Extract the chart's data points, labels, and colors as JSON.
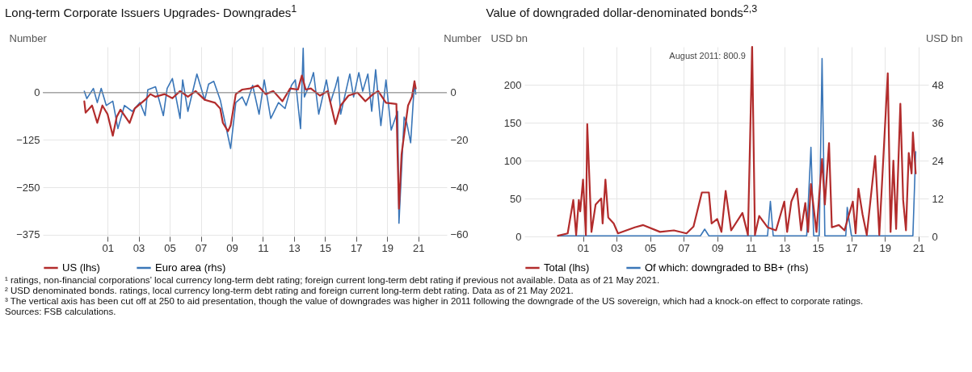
{
  "chart_data": [
    {
      "type": "line",
      "title": "Long-term Corporate Issuers Upgrades- Downgrades$^{1}$",
      "ylabel": "Number",
      "y2label": "Number",
      "xlim": [
        "1997-05",
        "2023-05"
      ],
      "xticks": [
        {
          "value": "2001-07",
          "label": "01"
        },
        {
          "value": "2003-07",
          "label": "03"
        },
        {
          "value": "2005-07",
          "label": "05"
        },
        {
          "value": "2007-07",
          "label": "07"
        },
        {
          "value": "2009-07",
          "label": "09"
        },
        {
          "value": "2011-07",
          "label": "11"
        },
        {
          "value": "2013-07",
          "label": "13"
        },
        {
          "value": "2015-07",
          "label": "15"
        },
        {
          "value": "2017-07",
          "label": "17"
        },
        {
          "value": "2019-07",
          "label": "19"
        },
        {
          "value": "2021-07",
          "label": "21"
        }
      ],
      "ylim": [
        -380,
        121
      ],
      "yticks": [
        -375,
        -250,
        -125,
        0
      ],
      "y2lim": [
        -60.8,
        19.4
      ],
      "y2ticks": [
        -60,
        -40,
        -20,
        0
      ],
      "grid": true,
      "legend": "bottom",
      "line_style": "solid",
      "marker": "none",
      "ref_lines": [
        {
          "axis": "y",
          "value": 0
        }
      ],
      "series": [
        {
          "name": "US (lhs)",
          "color": "#b22c2c",
          "x": [
            "2000-01",
            "2000-02",
            "2000-07",
            "2000-11",
            "2001-03",
            "2001-07",
            "2001-11",
            "2002-02",
            "2002-05",
            "2002-12",
            "2003-04",
            "2003-12",
            "2004-04",
            "2004-08",
            "2005-03",
            "2005-09",
            "2006-03",
            "2006-09",
            "2007-03",
            "2007-10",
            "2008-06",
            "2008-10",
            "2008-12",
            "2009-04",
            "2009-06",
            "2009-10",
            "2010-03",
            "2010-09",
            "2011-03",
            "2011-09",
            "2012-03",
            "2012-10",
            "2013-04",
            "2013-10",
            "2014-01",
            "2014-04",
            "2014-08",
            "2015-03",
            "2015-09",
            "2016-03",
            "2016-07",
            "2017-01",
            "2017-08",
            "2018-02",
            "2018-08",
            "2018-12",
            "2019-06",
            "2020-02",
            "2020-03",
            "2020-04",
            "2020-06",
            "2020-11",
            "2021-02",
            "2021-04",
            "2021-05"
          ],
          "values": [
            -23,
            -53,
            -34,
            -80,
            -34,
            -57,
            -114,
            -64,
            -45,
            -80,
            -42,
            -19,
            -4,
            -11,
            -4,
            -15,
            4,
            -11,
            4,
            -19,
            -27,
            -42,
            -80,
            -102,
            -87,
            -4,
            8,
            11,
            19,
            -4,
            4,
            -23,
            11,
            8,
            45,
            8,
            11,
            -8,
            4,
            -83,
            -34,
            -8,
            0,
            -23,
            -4,
            4,
            -27,
            -30,
            -171,
            -307,
            -163,
            -34,
            -11,
            30,
            11
          ]
        },
        {
          "name": "Euro area (rhs)",
          "color": "#3a76b8",
          "axis": "y2",
          "x": [
            "2000-01",
            "2000-03",
            "2000-08",
            "2000-11",
            "2001-02",
            "2001-06",
            "2001-11",
            "2002-03",
            "2002-08",
            "2003-02",
            "2003-08",
            "2003-12",
            "2004-02",
            "2004-08",
            "2005-02",
            "2005-05",
            "2005-09",
            "2006-03",
            "2006-05",
            "2006-09",
            "2007-04",
            "2007-10",
            "2008-01",
            "2008-05",
            "2008-10",
            "2009-06",
            "2009-10",
            "2010-03",
            "2010-06",
            "2010-11",
            "2011-04",
            "2011-08",
            "2012-01",
            "2012-07",
            "2012-12",
            "2013-05",
            "2013-08",
            "2013-12",
            "2014-02",
            "2014-03",
            "2014-08",
            "2014-10",
            "2015-02",
            "2015-08",
            "2015-11",
            "2016-03",
            "2016-05",
            "2016-07",
            "2017-02",
            "2017-05",
            "2017-09",
            "2017-12",
            "2018-04",
            "2018-07",
            "2018-10",
            "2019-02",
            "2019-06",
            "2019-10",
            "2020-03",
            "2020-04",
            "2020-08",
            "2020-10",
            "2021-01",
            "2021-03",
            "2021-04",
            "2021-05"
          ],
          "values": [
            0.6,
            -2.5,
            1.8,
            -4.2,
            1.8,
            -5.4,
            -3.6,
            -15.2,
            -5.4,
            -7.9,
            -4.2,
            -9.7,
            1.2,
            2.5,
            -9.7,
            1.8,
            6,
            -10.9,
            5.4,
            -7.9,
            7.9,
            -3.1,
            3.6,
            4.8,
            -3.1,
            -23.6,
            -4.2,
            -1.8,
            -5.4,
            3.1,
            -9.1,
            5.4,
            -10.9,
            -4.2,
            -6.7,
            3.1,
            5.4,
            -15.2,
            18.8,
            -1.8,
            4.8,
            8.5,
            -9.1,
            5.4,
            -4.2,
            2.5,
            6.7,
            -9.1,
            7.9,
            -1.8,
            8.5,
            0.6,
            7.9,
            -7.9,
            9.7,
            -13.9,
            5.4,
            -15.8,
            -7.9,
            -55.2,
            -10.3,
            -12.7,
            -21.2,
            -4.2,
            4.2,
            -0.6
          ]
        }
      ],
      "annotations": [
        "¹ ratings, non-financial corporations’ local currency long-term debt rating; foreign current long-term debt rating if previous not available. Data as of 21 May 2021."
      ]
    },
    {
      "type": "line",
      "title": "Value of downgraded dollar-denominated bonds$^{2,3}$",
      "ylabel": "USD bn",
      "y2label": "USD bn",
      "xlim": [
        "1998-01",
        "2022-02"
      ],
      "xticks": [
        {
          "value": "2001-07",
          "label": "01"
        },
        {
          "value": "2003-07",
          "label": "03"
        },
        {
          "value": "2005-07",
          "label": "05"
        },
        {
          "value": "2007-07",
          "label": "07"
        },
        {
          "value": "2009-07",
          "label": "09"
        },
        {
          "value": "2011-07",
          "label": "11"
        },
        {
          "value": "2013-07",
          "label": "13"
        },
        {
          "value": "2015-07",
          "label": "15"
        },
        {
          "value": "2017-07",
          "label": "17"
        },
        {
          "value": "2019-07",
          "label": "19"
        },
        {
          "value": "2021-07",
          "label": "21"
        }
      ],
      "ylim": [
        0,
        250
      ],
      "yticks": [
        0,
        50,
        100,
        150,
        200
      ],
      "y2lim": [
        0,
        60
      ],
      "y2ticks": [
        0,
        12,
        24,
        36,
        48
      ],
      "grid": true,
      "legend": "bottom",
      "line_style": "solid",
      "marker": "none",
      "series": [
        {
          "name": "Total (lhs)",
          "color": "#b22c2c",
          "x": [
            "2000-01",
            "2000-08",
            "2000-12",
            "2001-02",
            "2001-04",
            "2001-05",
            "2001-07",
            "2001-09",
            "2001-10",
            "2002-01",
            "2002-04",
            "2002-08",
            "2002-09",
            "2002-11",
            "2003-01",
            "2003-05",
            "2003-08",
            "2004-08",
            "2005-02",
            "2006-02",
            "2006-12",
            "2007-09",
            "2008-02",
            "2008-08",
            "2009-01",
            "2009-03",
            "2009-07",
            "2009-10",
            "2010-01",
            "2010-05",
            "2011-01",
            "2011-05",
            "2011-08",
            "2011-10",
            "2012-01",
            "2012-07",
            "2013-01",
            "2013-07",
            "2013-09",
            "2013-12",
            "2014-04",
            "2014-07",
            "2014-10",
            "2014-12",
            "2015-02",
            "2015-06",
            "2015-10",
            "2015-12",
            "2016-03",
            "2016-05",
            "2016-10",
            "2017-02",
            "2017-05",
            "2017-08",
            "2017-10",
            "2017-12",
            "2018-03",
            "2018-06",
            "2018-12",
            "2019-03",
            "2019-09",
            "2019-11",
            "2020-01",
            "2020-03",
            "2020-06",
            "2020-08",
            "2020-10",
            "2020-12",
            "2021-02",
            "2021-03",
            "2021-05"
          ],
          "values": [
            1,
            4,
            48,
            2,
            48,
            33,
            75,
            2,
            148,
            6,
            42,
            50,
            17,
            75,
            25,
            17,
            4,
            12,
            15,
            6,
            8,
            4,
            13,
            58,
            58,
            17,
            23,
            6,
            60,
            8,
            31,
            2,
            250,
            2,
            27,
            12,
            8,
            46,
            6,
            46,
            63,
            8,
            44,
            6,
            69,
            6,
            102,
            42,
            123,
            12,
            15,
            8,
            27,
            46,
            4,
            63,
            29,
            2,
            106,
            2,
            215,
            6,
            100,
            10,
            175,
            48,
            8,
            110,
            83,
            137,
            83
          ]
        },
        {
          "name": "Of which: downgraded to BB+ (rhs)",
          "color": "#3a76b8",
          "axis": "y2",
          "x": [
            "2000-01",
            "2008-07",
            "2008-10",
            "2009-01",
            "2012-07",
            "2012-09",
            "2012-11",
            "2014-11",
            "2015-02",
            "2015-04",
            "2015-08",
            "2015-10",
            "2015-12",
            "2017-03",
            "2017-04",
            "2017-07",
            "2021-03",
            "2021-05"
          ],
          "values": [
            0.2,
            0.2,
            2.3,
            0.2,
            0.2,
            11.1,
            0.2,
            0.2,
            28.2,
            0.2,
            0.2,
            56.3,
            0.2,
            0.2,
            9.2,
            0.2,
            0.2,
            26.8
          ]
        }
      ],
      "annotations": [
        {
          "text": "August 2011: 800.9",
          "x": "2011-08",
          "y": 250
        },
        "² USD denominated bonds. ratings, local currency long-term debt rating and foreign current long-term debt rating. Data as of 21 May 2021.",
        "³ The vertical axis has been cut off at 250 to aid presentation, though the value of downgrades was higher in 2011 following the downgrade of the US sovereign, which had a knock-on effect to corporate ratings.",
        "Sources: FSB calculations."
      ]
    }
  ]
}
